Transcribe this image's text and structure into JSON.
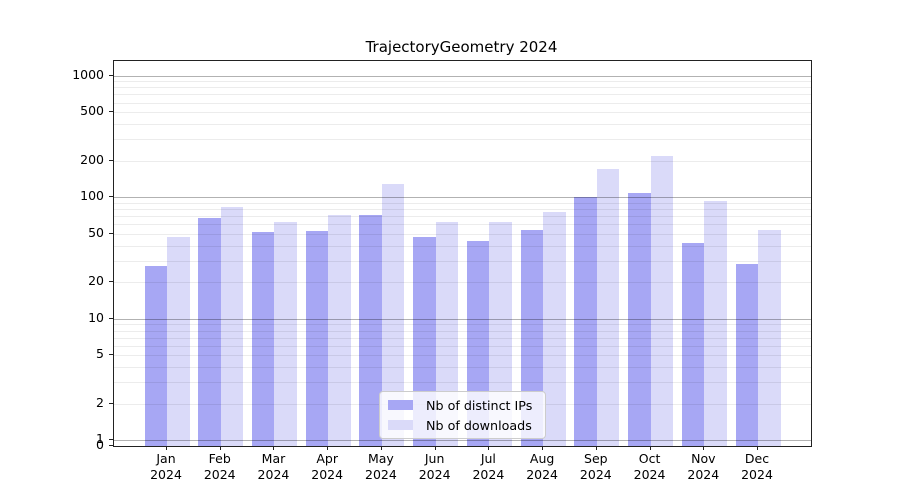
{
  "chart_data": {
    "type": "bar",
    "title": "TrajectoryGeometry 2024",
    "categories": [
      "Jan",
      "Feb",
      "Mar",
      "Apr",
      "May",
      "Jun",
      "Jul",
      "Aug",
      "Sep",
      "Oct",
      "Nov",
      "Dec"
    ],
    "category_year": "2024",
    "series": [
      {
        "name": "Nb of distinct IPs",
        "color": "#a7a7f4",
        "values": [
          27,
          67,
          52,
          53,
          71,
          47,
          44,
          54,
          100,
          108,
          42,
          28
        ]
      },
      {
        "name": "Nb of downloads",
        "color": "#dadaf9",
        "values": [
          47,
          83,
          63,
          72,
          128,
          63,
          62,
          76,
          170,
          218,
          93,
          54
        ]
      }
    ],
    "yscale": "symlog",
    "ytick_labels": [
      "1000",
      "500",
      "200",
      "100",
      "50",
      "20",
      "10",
      "5",
      "2",
      "1",
      "0"
    ],
    "ylim": [
      0,
      1270
    ],
    "grid": true,
    "legend_position": "lower center",
    "axis_color": "#222222",
    "major_grid_color": "#adadad",
    "minor_grid_color": "#ececec"
  }
}
